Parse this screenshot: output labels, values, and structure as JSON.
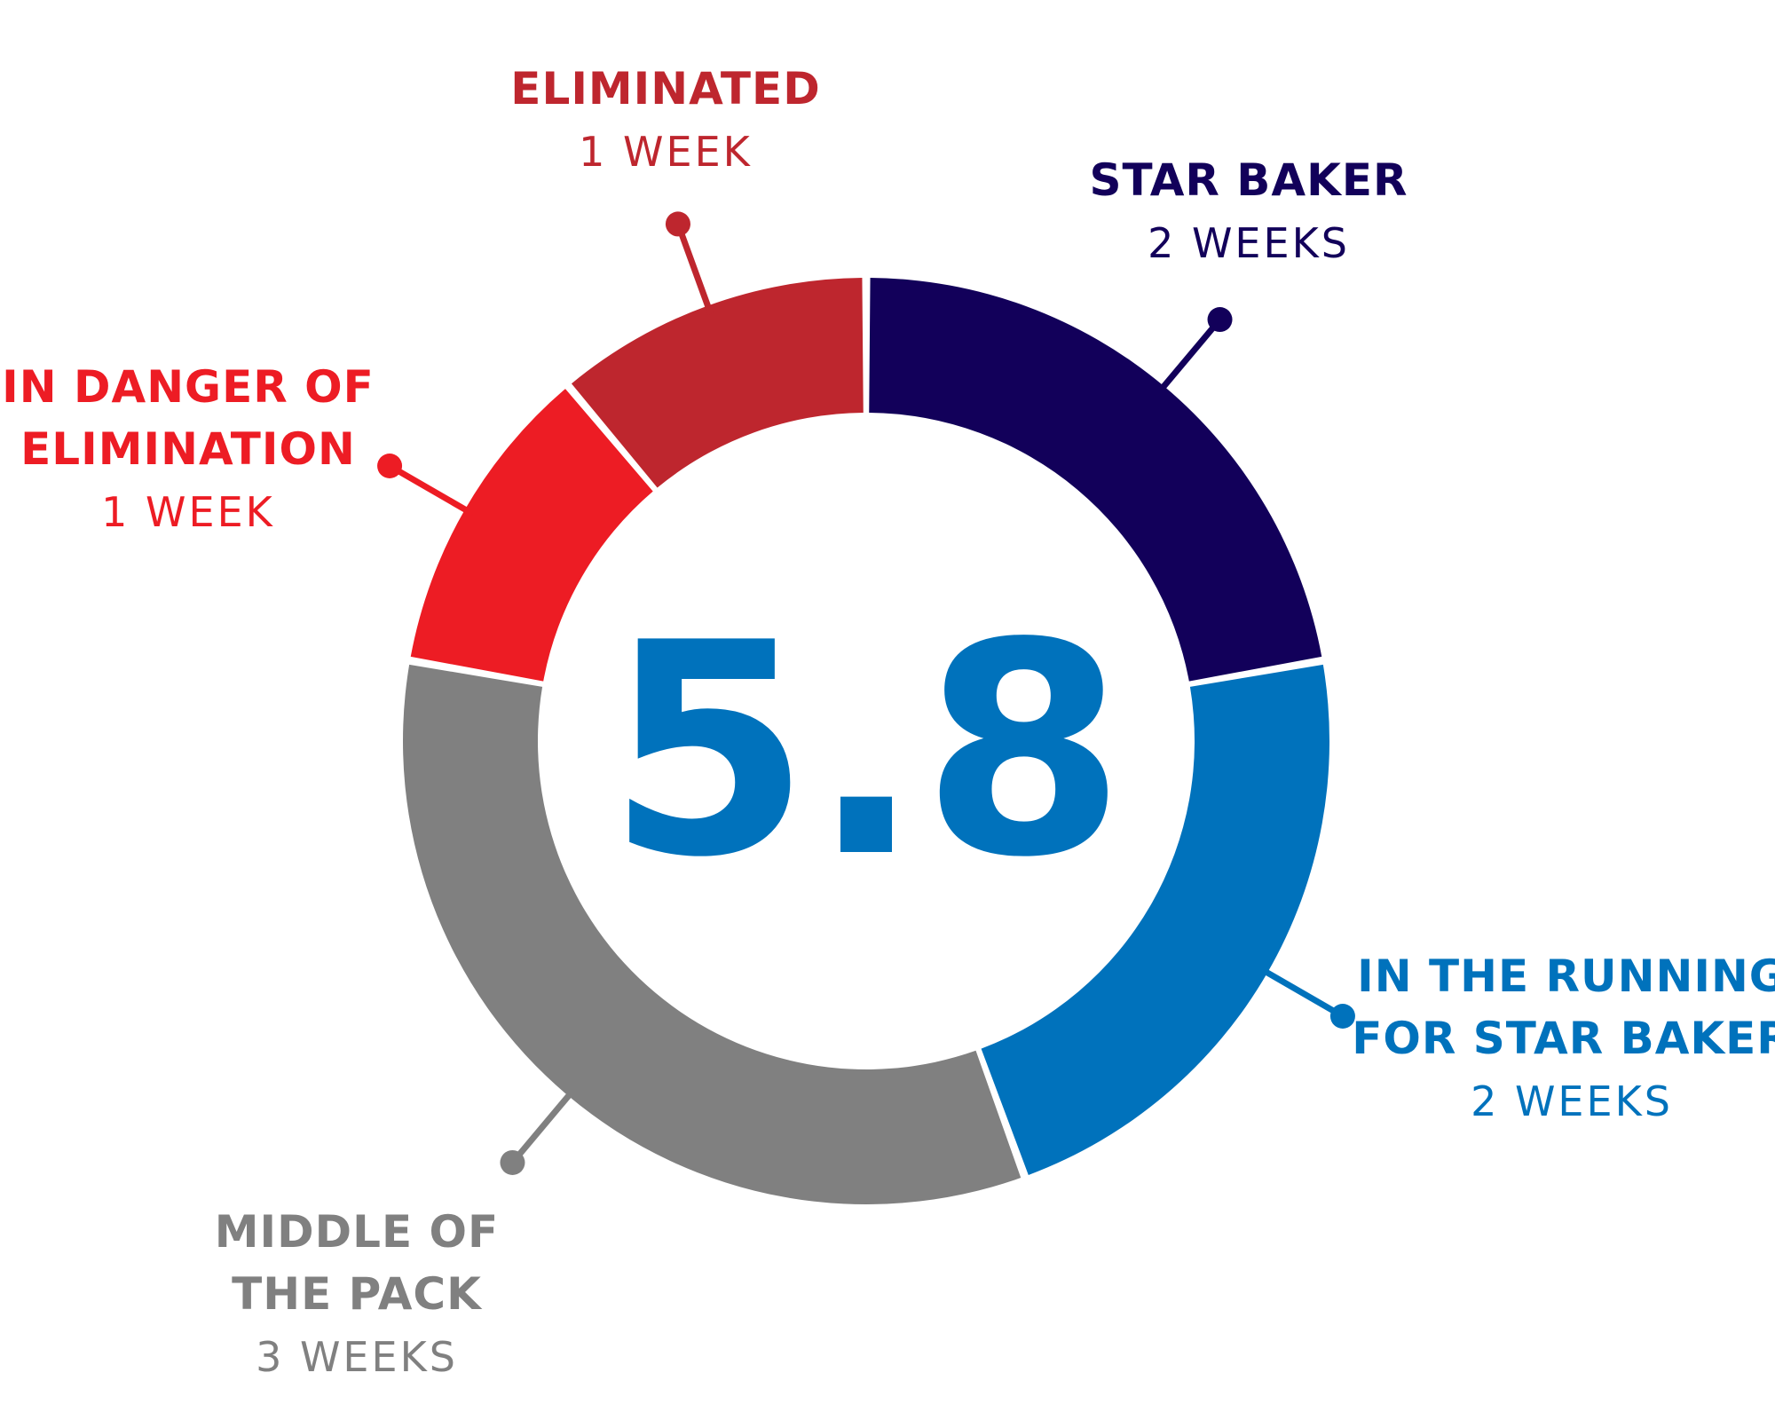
{
  "chart_data": {
    "type": "pie",
    "center_value": "5.8",
    "slices": [
      {
        "title_lines": [
          "STAR BAKER"
        ],
        "sub": "2 WEEKS",
        "value": 2,
        "color": "#12005a"
      },
      {
        "title_lines": [
          "IN THE RUNNING",
          "FOR STAR BAKER"
        ],
        "sub": "2 WEEKS",
        "value": 2,
        "color": "#0072bc"
      },
      {
        "title_lines": [
          "MIDDLE OF",
          "THE PACK"
        ],
        "sub": "3 WEEKS",
        "value": 3,
        "color": "#808080"
      },
      {
        "title_lines": [
          "IN DANGER OF",
          "ELIMINATION"
        ],
        "sub": "1 WEEK",
        "value": 1,
        "color": "#ed1c24"
      },
      {
        "title_lines": [
          "ELIMINATED"
        ],
        "sub": "1 WEEK",
        "value": 1,
        "color": "#be262e"
      }
    ]
  }
}
